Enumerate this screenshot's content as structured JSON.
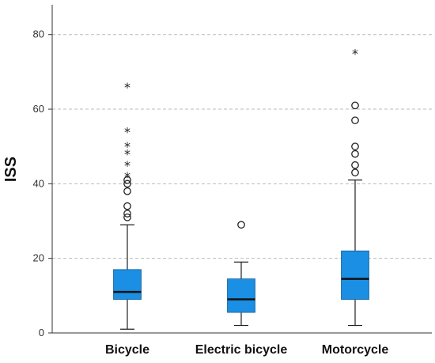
{
  "chart_data": {
    "type": "box",
    "ylabel": "ISS",
    "xlabel": "",
    "ylim": [
      0,
      88
    ],
    "yticks": [
      0,
      20,
      40,
      60,
      80
    ],
    "grid": "horizontal-dashed",
    "box_color": "#1a8fe3",
    "categories": [
      "Bicycle",
      "Electric bicycle",
      "Motorcycle"
    ],
    "boxes": [
      {
        "category": "Bicycle",
        "whisker_low": 1,
        "q1": 9,
        "median": 11,
        "q3": 17,
        "whisker_high": 29,
        "outliers": [
          31,
          32,
          34,
          38,
          40,
          41
        ],
        "extremes": [
          42,
          45,
          48,
          50,
          54,
          66
        ]
      },
      {
        "category": "Electric bicycle",
        "whisker_low": 2,
        "q1": 5.5,
        "median": 9,
        "q3": 14.5,
        "whisker_high": 19,
        "outliers": [
          29
        ],
        "extremes": []
      },
      {
        "category": "Motorcycle",
        "whisker_low": 2,
        "q1": 9,
        "median": 14.5,
        "q3": 22,
        "whisker_high": 41,
        "outliers": [
          43,
          45,
          48,
          50,
          57,
          61
        ],
        "extremes": [
          75
        ]
      }
    ]
  }
}
